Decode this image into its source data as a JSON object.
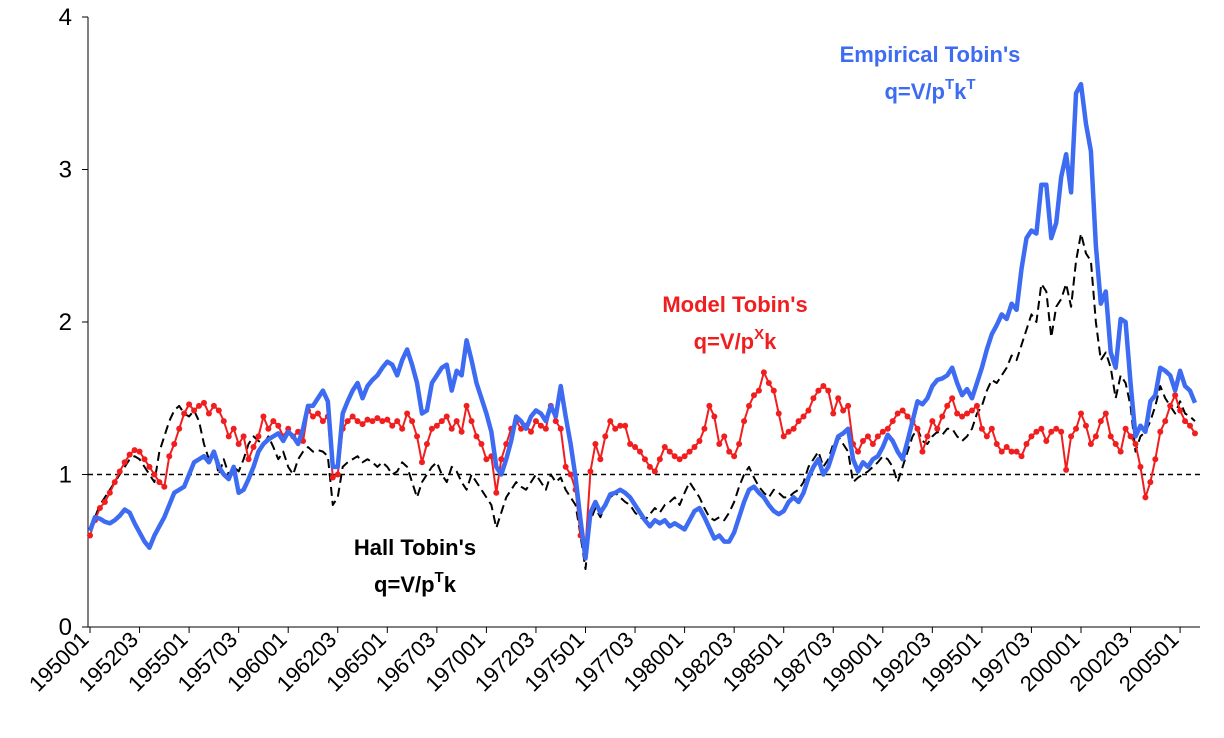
{
  "chart_data": {
    "type": "line",
    "categories": [
      "195001",
      null,
      null,
      null,
      null,
      null,
      null,
      null,
      null,
      null,
      "195203",
      null,
      null,
      null,
      null,
      null,
      null,
      null,
      null,
      null,
      "195501",
      null,
      null,
      null,
      null,
      null,
      null,
      null,
      null,
      null,
      "195703",
      null,
      null,
      null,
      null,
      null,
      null,
      null,
      null,
      null,
      "196001",
      null,
      null,
      null,
      null,
      null,
      null,
      null,
      null,
      null,
      "196203",
      null,
      null,
      null,
      null,
      null,
      null,
      null,
      null,
      null,
      "196501",
      null,
      null,
      null,
      null,
      null,
      null,
      null,
      null,
      null,
      "196703",
      null,
      null,
      null,
      null,
      null,
      null,
      null,
      null,
      null,
      "197001",
      null,
      null,
      null,
      null,
      null,
      null,
      null,
      null,
      null,
      "197203",
      null,
      null,
      null,
      null,
      null,
      null,
      null,
      null,
      null,
      "197501",
      null,
      null,
      null,
      null,
      null,
      null,
      null,
      null,
      null,
      "197703",
      null,
      null,
      null,
      null,
      null,
      null,
      null,
      null,
      null,
      "198001",
      null,
      null,
      null,
      null,
      null,
      null,
      null,
      null,
      null,
      "198203",
      null,
      null,
      null,
      null,
      null,
      null,
      null,
      null,
      null,
      "198501",
      null,
      null,
      null,
      null,
      null,
      null,
      null,
      null,
      null,
      "198703",
      null,
      null,
      null,
      null,
      null,
      null,
      null,
      null,
      null,
      "199001",
      null,
      null,
      null,
      null,
      null,
      null,
      null,
      null,
      null,
      "199203",
      null,
      null,
      null,
      null,
      null,
      null,
      null,
      null,
      null,
      "199501",
      null,
      null,
      null,
      null,
      null,
      null,
      null,
      null,
      null,
      "199703",
      null,
      null,
      null,
      null,
      null,
      null,
      null,
      null,
      null,
      "200001",
      null,
      null,
      null,
      null,
      null,
      null,
      null,
      null,
      null,
      "200203",
      null,
      null,
      null,
      null,
      null,
      null,
      null,
      null,
      null,
      "200501",
      null,
      null,
      null
    ],
    "series": [
      {
        "name": "Empirical Tobin's",
        "formula": [
          "q=V/p",
          "T",
          "k",
          "T"
        ],
        "color": "#3d6cf2",
        "style": "solid",
        "values": [
          0.63,
          0.72,
          0.71,
          0.69,
          0.68,
          0.7,
          0.73,
          0.77,
          0.75,
          0.68,
          0.62,
          0.56,
          0.52,
          0.6,
          0.66,
          0.72,
          0.8,
          0.88,
          0.9,
          0.92,
          1.0,
          1.08,
          1.1,
          1.12,
          1.08,
          1.15,
          1.05,
          1.0,
          0.97,
          1.05,
          0.88,
          0.9,
          0.97,
          1.05,
          1.15,
          1.2,
          1.23,
          1.25,
          1.27,
          1.22,
          1.28,
          1.25,
          1.2,
          1.3,
          1.45,
          1.45,
          1.5,
          1.55,
          1.48,
          1.05,
          1.05,
          1.4,
          1.48,
          1.55,
          1.6,
          1.5,
          1.58,
          1.62,
          1.65,
          1.7,
          1.74,
          1.72,
          1.65,
          1.75,
          1.82,
          1.72,
          1.6,
          1.4,
          1.42,
          1.6,
          1.65,
          1.7,
          1.72,
          1.55,
          1.68,
          1.65,
          1.88,
          1.75,
          1.6,
          1.5,
          1.4,
          1.28,
          1.05,
          1.0,
          1.1,
          1.22,
          1.38,
          1.35,
          1.3,
          1.38,
          1.42,
          1.4,
          1.35,
          1.45,
          1.38,
          1.58,
          1.38,
          1.2,
          0.98,
          0.7,
          0.45,
          0.75,
          0.82,
          0.75,
          0.8,
          0.87,
          0.88,
          0.9,
          0.88,
          0.85,
          0.8,
          0.75,
          0.7,
          0.66,
          0.7,
          0.68,
          0.7,
          0.66,
          0.68,
          0.66,
          0.64,
          0.7,
          0.76,
          0.78,
          0.72,
          0.65,
          0.58,
          0.6,
          0.56,
          0.56,
          0.62,
          0.72,
          0.82,
          0.9,
          0.92,
          0.88,
          0.85,
          0.8,
          0.76,
          0.74,
          0.76,
          0.82,
          0.85,
          0.82,
          0.88,
          0.98,
          1.05,
          1.1,
          1.0,
          1.05,
          1.15,
          1.25,
          1.27,
          1.3,
          1.1,
          1.02,
          1.08,
          1.05,
          1.1,
          1.12,
          1.18,
          1.26,
          1.22,
          1.15,
          1.1,
          1.22,
          1.35,
          1.48,
          1.46,
          1.5,
          1.58,
          1.62,
          1.63,
          1.65,
          1.7,
          1.6,
          1.52,
          1.56,
          1.5,
          1.6,
          1.7,
          1.82,
          1.92,
          1.98,
          2.05,
          2.02,
          2.12,
          2.08,
          2.35,
          2.55,
          2.6,
          2.58,
          2.9,
          2.9,
          2.55,
          2.65,
          2.95,
          3.1,
          2.85,
          3.5,
          3.56,
          3.3,
          3.12,
          2.5,
          2.12,
          2.2,
          1.8,
          1.7,
          2.02,
          2.0,
          1.6,
          1.25,
          1.32,
          1.28,
          1.48,
          1.52,
          1.7,
          1.68,
          1.65,
          1.55,
          1.68,
          1.58,
          1.55,
          1.47
        ]
      },
      {
        "name": "Model Tobin's",
        "formula": [
          "q=V/p",
          "X",
          "k"
        ],
        "color": "#f01e1e",
        "style": "dots",
        "values": [
          0.6,
          0.7,
          0.78,
          0.82,
          0.88,
          0.95,
          1.02,
          1.08,
          1.13,
          1.16,
          1.15,
          1.1,
          1.05,
          1.0,
          0.95,
          0.92,
          1.12,
          1.2,
          1.3,
          1.4,
          1.46,
          1.42,
          1.45,
          1.47,
          1.4,
          1.45,
          1.42,
          1.35,
          1.25,
          1.3,
          1.2,
          1.25,
          1.1,
          1.18,
          1.25,
          1.38,
          1.3,
          1.35,
          1.32,
          1.25,
          1.3,
          1.25,
          1.28,
          1.22,
          1.42,
          1.38,
          1.4,
          1.35,
          1.38,
          0.98,
          1.0,
          1.3,
          1.35,
          1.38,
          1.35,
          1.33,
          1.36,
          1.35,
          1.37,
          1.35,
          1.36,
          1.32,
          1.35,
          1.3,
          1.4,
          1.35,
          1.25,
          1.08,
          1.2,
          1.3,
          1.32,
          1.35,
          1.38,
          1.3,
          1.35,
          1.28,
          1.45,
          1.35,
          1.25,
          1.2,
          1.1,
          1.12,
          0.88,
          1.1,
          1.2,
          1.3,
          1.35,
          1.3,
          1.32,
          1.28,
          1.35,
          1.32,
          1.3,
          1.45,
          1.35,
          1.3,
          1.05,
          1.0,
          0.9,
          0.6,
          0.52,
          1.02,
          1.2,
          1.1,
          1.25,
          1.35,
          1.3,
          1.32,
          1.32,
          1.2,
          1.18,
          1.15,
          1.1,
          1.05,
          1.02,
          1.1,
          1.18,
          1.15,
          1.12,
          1.1,
          1.12,
          1.15,
          1.18,
          1.22,
          1.3,
          1.45,
          1.38,
          1.2,
          1.25,
          1.15,
          1.12,
          1.2,
          1.35,
          1.45,
          1.52,
          1.55,
          1.67,
          1.6,
          1.55,
          1.4,
          1.25,
          1.28,
          1.3,
          1.35,
          1.38,
          1.42,
          1.5,
          1.55,
          1.58,
          1.55,
          1.4,
          1.5,
          1.42,
          1.45,
          1.2,
          1.15,
          1.22,
          1.25,
          1.2,
          1.25,
          1.28,
          1.3,
          1.35,
          1.4,
          1.42,
          1.38,
          1.35,
          1.3,
          1.15,
          1.25,
          1.35,
          1.3,
          1.38,
          1.45,
          1.5,
          1.4,
          1.38,
          1.4,
          1.42,
          1.45,
          1.3,
          1.25,
          1.3,
          1.2,
          1.15,
          1.18,
          1.15,
          1.15,
          1.12,
          1.2,
          1.25,
          1.28,
          1.3,
          1.22,
          1.28,
          1.3,
          1.28,
          1.03,
          1.25,
          1.3,
          1.4,
          1.32,
          1.2,
          1.25,
          1.35,
          1.4,
          1.25,
          1.2,
          1.15,
          1.3,
          1.25,
          1.2,
          1.05,
          0.85,
          0.95,
          1.1,
          1.28,
          1.35,
          1.45,
          1.52,
          1.42,
          1.35,
          1.32,
          1.27
        ]
      },
      {
        "name": "Hall Tobin's",
        "formula": [
          "q=V/p",
          "T",
          "k"
        ],
        "color": "#000000",
        "style": "dashed",
        "values": [
          0.65,
          0.72,
          0.8,
          0.85,
          0.9,
          0.95,
          1.0,
          1.05,
          1.1,
          1.12,
          1.1,
          1.05,
          1.0,
          0.95,
          1.15,
          1.25,
          1.35,
          1.42,
          1.45,
          1.4,
          1.38,
          1.42,
          1.35,
          1.2,
          1.1,
          1.15,
          1.0,
          1.1,
          1.0,
          1.05,
          1.02,
          1.1,
          1.2,
          1.25,
          1.22,
          1.2,
          1.25,
          1.18,
          1.1,
          1.15,
          1.05,
          1.0,
          1.1,
          1.15,
          1.18,
          1.15,
          1.16,
          1.15,
          1.12,
          0.8,
          0.85,
          1.05,
          1.08,
          1.1,
          1.12,
          1.08,
          1.1,
          1.08,
          1.05,
          1.08,
          1.05,
          1.0,
          1.02,
          1.08,
          1.05,
          0.95,
          0.85,
          0.95,
          1.0,
          1.05,
          1.08,
          1.0,
          0.95,
          1.05,
          1.02,
          0.95,
          0.9,
          1.0,
          0.95,
          0.9,
          0.85,
          0.8,
          0.65,
          0.75,
          0.85,
          0.9,
          0.95,
          0.92,
          0.9,
          0.95,
          1.0,
          0.95,
          0.9,
          1.0,
          0.95,
          0.98,
          0.9,
          0.85,
          0.8,
          0.6,
          0.38,
          0.7,
          0.78,
          0.72,
          0.8,
          0.85,
          0.88,
          0.85,
          0.82,
          0.8,
          0.75,
          0.72,
          0.7,
          0.74,
          0.78,
          0.75,
          0.8,
          0.82,
          0.85,
          0.8,
          0.88,
          0.95,
          0.9,
          0.85,
          0.78,
          0.72,
          0.7,
          0.72,
          0.7,
          0.75,
          0.82,
          0.92,
          1.0,
          1.05,
          0.98,
          0.92,
          0.88,
          0.85,
          0.9,
          0.88,
          0.85,
          0.85,
          0.88,
          0.9,
          0.95,
          1.05,
          1.1,
          1.15,
          1.05,
          1.1,
          1.2,
          1.25,
          1.2,
          1.15,
          0.95,
          0.98,
          1.0,
          1.02,
          1.05,
          1.08,
          1.12,
          1.1,
          1.05,
          0.95,
          1.05,
          1.15,
          1.25,
          1.3,
          1.22,
          1.2,
          1.25,
          1.28,
          1.26,
          1.3,
          1.3,
          1.25,
          1.22,
          1.25,
          1.3,
          1.4,
          1.45,
          1.55,
          1.62,
          1.6,
          1.65,
          1.7,
          1.78,
          1.75,
          1.85,
          1.95,
          2.05,
          2.0,
          2.25,
          2.2,
          1.9,
          2.1,
          2.15,
          2.25,
          2.1,
          2.4,
          2.58,
          2.45,
          2.4,
          2.0,
          1.75,
          1.8,
          1.7,
          1.5,
          1.65,
          1.6,
          1.45,
          1.15,
          1.25,
          1.28,
          1.35,
          1.45,
          1.58,
          1.5,
          1.45,
          1.4,
          1.48,
          1.4,
          1.38,
          1.35
        ]
      }
    ],
    "ylim": [
      0,
      4
    ],
    "yticks": [
      0,
      1,
      2,
      3,
      4
    ],
    "hline": 1
  }
}
